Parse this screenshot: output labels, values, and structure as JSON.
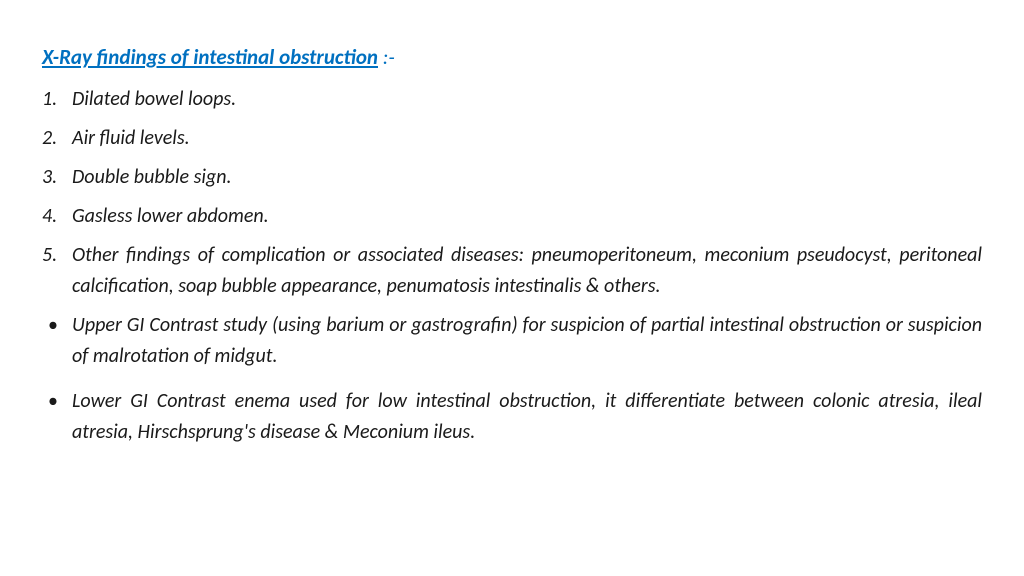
{
  "title": "X-Ray findings of intestinal obstruction",
  "title_suffix": " :-",
  "numbered": [
    "Dilated bowel loops.",
    "Air fluid levels.",
    "Double bubble sign.",
    "Gasless lower abdomen.",
    "Other findings of complication or associated diseases: pneumoperitoneum, meconium pseudocyst, peritoneal calcification, soap bubble appearance,  penumatosis intestinalis & others."
  ],
  "bullets": [
    "Upper GI Contrast study (using barium or gastrografin) for suspicion of partial intestinal obstruction or suspicion of malrotation of midgut.",
    "Lower GI Contrast enema used for low intestinal obstruction, it differentiate between colonic atresia, ileal atresia, Hirschsprung's disease & Meconium ileus."
  ],
  "colors": {
    "title": "#0070c0",
    "body_text": "#1a1a1a",
    "background": "#ffffff"
  },
  "typography": {
    "title_fontsize": 21,
    "title_weight": 700,
    "body_fontsize": 20,
    "italic": true,
    "font_family": "Calibri"
  }
}
